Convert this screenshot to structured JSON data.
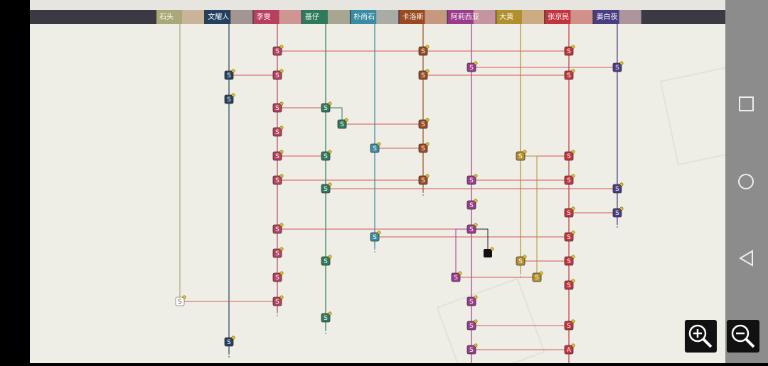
{
  "header": {
    "characters": [
      "石头",
      "文耀人",
      "李雯",
      "基仔",
      "朴尚石",
      "卡洛斯",
      "阿莉西亚",
      "大黄",
      "张京民",
      "姜白夜"
    ]
  },
  "nodes": [
    {
      "label": "S"
    },
    {
      "label": "S"
    },
    {
      "label": "S"
    },
    {
      "label": "S"
    },
    {
      "label": "S"
    },
    {
      "label": "S"
    },
    {
      "label": "S"
    },
    {
      "label": "S"
    },
    {
      "label": "S"
    },
    {
      "label": "S"
    },
    {
      "label": "S"
    },
    {
      "label": "S"
    },
    {
      "label": "S"
    },
    {
      "label": "S"
    },
    {
      "label": "S"
    },
    {
      "label": "S"
    },
    {
      "label": "S"
    },
    {
      "label": "S"
    },
    {
      "label": "S"
    },
    {
      "label": "S"
    },
    {
      "label": "S"
    },
    {
      "label": "S"
    },
    {
      "label": "S"
    },
    {
      "label": "S"
    },
    {
      "label": "S"
    },
    {
      "label": "S"
    },
    {
      "label": "S"
    },
    {
      "label": "S"
    },
    {
      "label": "S"
    },
    {
      "label": "S"
    },
    {
      "label": "S"
    },
    {
      "label": "S"
    },
    {
      "label": "S"
    },
    {
      "label": "S"
    },
    {
      "label": "S"
    },
    {
      "label": "S"
    },
    {
      "label": "S"
    },
    {
      "label": "S"
    },
    {
      "label": "S"
    },
    {
      "label": "S"
    },
    {
      "label": "S"
    },
    {
      "label": "S"
    },
    {
      "label": "S"
    },
    {
      "label": "S"
    },
    {
      "label": "S"
    },
    {
      "label": "S"
    },
    {
      "label": "S"
    },
    {
      "label": "S"
    },
    {
      "label": "S"
    },
    {
      "label": "S"
    },
    {
      "label": "A"
    }
  ]
}
